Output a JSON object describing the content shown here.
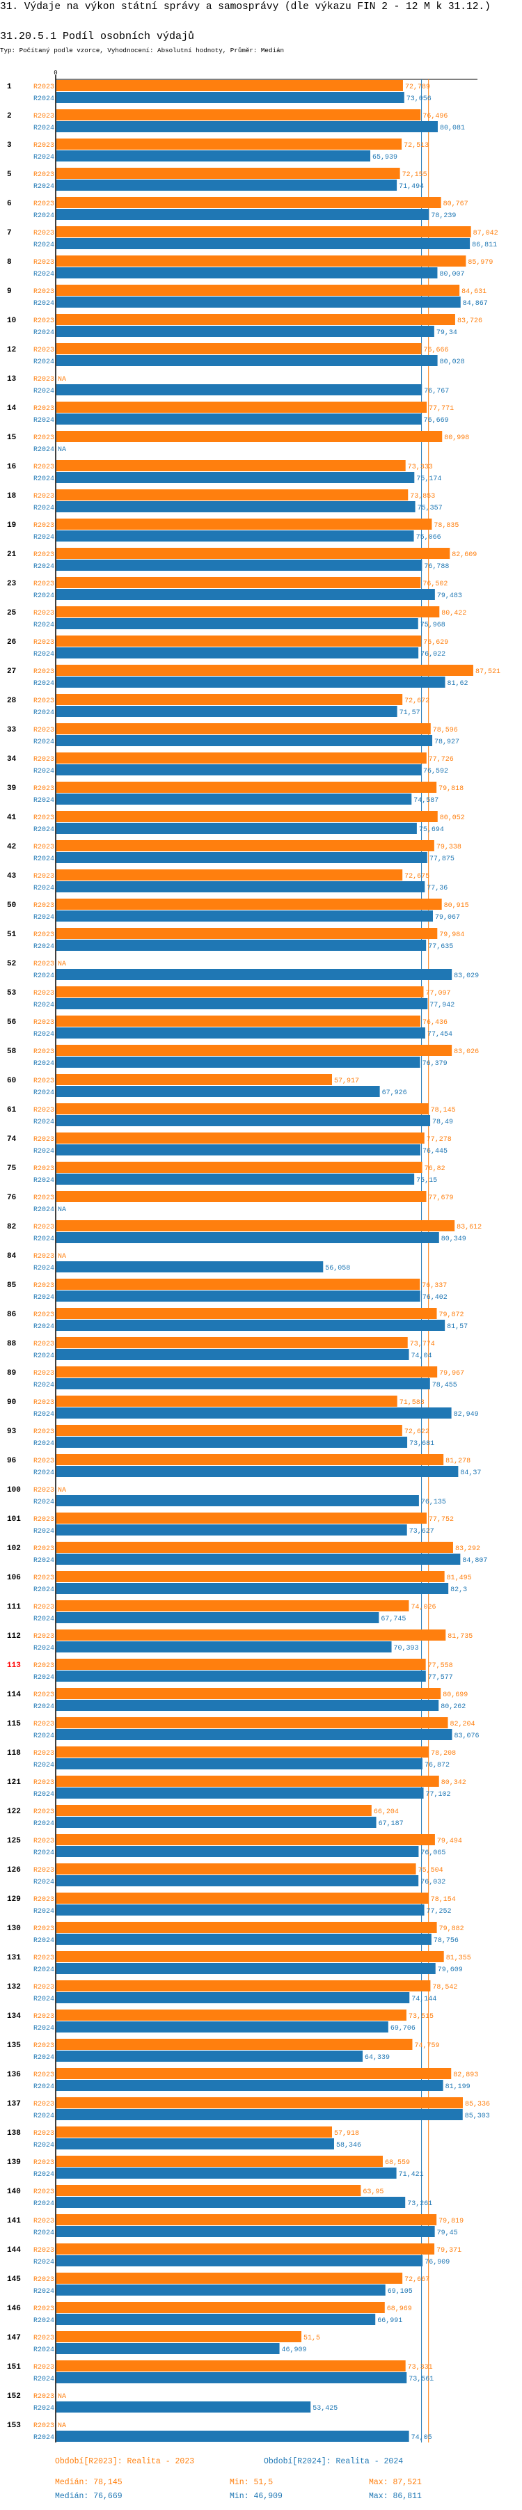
{
  "header": {
    "title": "31. Výdaje na výkon státní správy a samosprávy (dle výkazu FIN 2 - 12 M k 31.12.)",
    "subtitle": "31.20.5.1 Podíl osobních výdajů",
    "type_line": "Typ: Počítaný podle vzorce, Vyhodnocení: Absolutní hodnoty, Průměr: Medián"
  },
  "colors": {
    "R2023": "#ff7f0e",
    "R2024": "#1f77b4",
    "highlight": "#ff0000"
  },
  "chart_data": {
    "type": "bar",
    "orientation": "horizontal",
    "axis_zero_label": "0",
    "xlim": [
      0,
      95
    ],
    "na_label": "NA",
    "highlighted_category": "113",
    "series_labels": [
      "R2023",
      "R2024"
    ],
    "categories": [
      "1",
      "2",
      "3",
      "5",
      "6",
      "7",
      "8",
      "9",
      "10",
      "12",
      "13",
      "14",
      "15",
      "16",
      "18",
      "19",
      "21",
      "23",
      "25",
      "26",
      "27",
      "28",
      "33",
      "34",
      "39",
      "41",
      "42",
      "43",
      "50",
      "51",
      "52",
      "53",
      "56",
      "58",
      "60",
      "61",
      "74",
      "75",
      "76",
      "82",
      "84",
      "85",
      "86",
      "88",
      "89",
      "90",
      "93",
      "96",
      "100",
      "101",
      "102",
      "106",
      "111",
      "112",
      "113",
      "114",
      "115",
      "118",
      "121",
      "122",
      "125",
      "126",
      "129",
      "130",
      "131",
      "132",
      "134",
      "135",
      "136",
      "137",
      "138",
      "139",
      "140",
      "141",
      "144",
      "145",
      "146",
      "147",
      "151",
      "152",
      "153"
    ],
    "series": [
      {
        "name": "R2023",
        "values": [
          72.789,
          76.496,
          72.513,
          72.155,
          80.767,
          87.042,
          85.979,
          84.631,
          83.726,
          76.666,
          null,
          77.771,
          80.998,
          73.333,
          73.853,
          78.835,
          82.609,
          76.502,
          80.422,
          76.629,
          87.521,
          72.672,
          78.596,
          77.726,
          79.818,
          80.052,
          79.338,
          72.675,
          80.915,
          79.984,
          null,
          77.097,
          76.436,
          83.026,
          57.917,
          78.145,
          77.278,
          76.82,
          77.679,
          83.612,
          null,
          76.337,
          79.872,
          73.774,
          79.967,
          71.583,
          72.622,
          81.278,
          null,
          77.752,
          83.292,
          81.495,
          74.026,
          81.735,
          77.558,
          80.699,
          82.204,
          78.208,
          80.342,
          66.204,
          79.494,
          75.504,
          78.154,
          79.882,
          81.355,
          78.542,
          73.515,
          74.759,
          82.893,
          85.336,
          57.918,
          68.559,
          63.95,
          79.819,
          79.371,
          72.667,
          68.969,
          51.5,
          73.331,
          null,
          null
        ]
      },
      {
        "name": "R2024",
        "values": [
          73.056,
          80.081,
          65.939,
          71.494,
          78.239,
          86.811,
          80.007,
          84.867,
          79.34,
          80.028,
          76.767,
          76.669,
          null,
          75.174,
          75.357,
          75.066,
          76.788,
          79.483,
          75.968,
          76.022,
          81.62,
          71.57,
          78.927,
          76.592,
          74.587,
          75.694,
          77.875,
          77.36,
          79.067,
          77.635,
          83.029,
          77.942,
          77.454,
          76.379,
          67.926,
          78.49,
          76.445,
          75.15,
          null,
          80.349,
          56.058,
          76.402,
          81.57,
          74.04,
          78.455,
          82.949,
          73.681,
          84.37,
          76.135,
          73.627,
          84.807,
          82.3,
          67.745,
          70.393,
          77.577,
          80.262,
          83.076,
          76.872,
          77.102,
          67.187,
          76.065,
          76.032,
          77.252,
          78.756,
          79.609,
          74.144,
          69.706,
          64.339,
          81.199,
          85.303,
          58.346,
          71.421,
          73.261,
          79.45,
          76.909,
          69.105,
          66.991,
          46.909,
          73.561,
          53.425,
          74.05
        ]
      }
    ],
    "medians": {
      "R2023": 78.145,
      "R2024": 76.669
    }
  },
  "legend": {
    "r2023": "Období[R2023]: Realita - 2023",
    "r2024": "Období[R2024]: Realita - 2024"
  },
  "stats": {
    "r2023": {
      "median": "Medián: 78,145",
      "min": "Min: 51,5",
      "max": "Max: 87,521"
    },
    "r2024": {
      "median": "Medián: 76,669",
      "min": "Min: 46,909",
      "max": "Max: 86,811"
    }
  }
}
